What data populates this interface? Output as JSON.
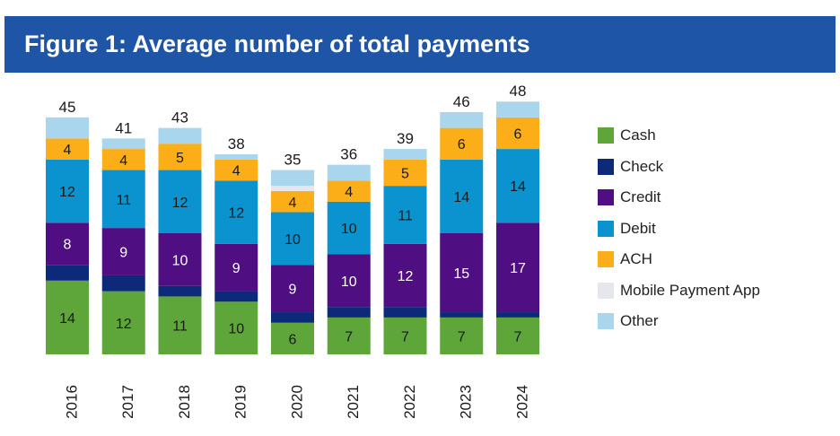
{
  "chart_data": {
    "type": "bar",
    "stacked": true,
    "title": "Figure 1: Average number of total payments",
    "xlabel": "",
    "ylabel": "",
    "ylim": [
      0,
      48
    ],
    "legend_position": "right",
    "categories": [
      "2016",
      "2017",
      "2018",
      "2019",
      "2020",
      "2021",
      "2022",
      "2023",
      "2024"
    ],
    "totals": [
      45,
      41,
      43,
      38,
      35,
      36,
      39,
      46,
      48
    ],
    "series": [
      {
        "name": "Cash",
        "color": "#5ea639",
        "label_color": "#1a1a1a",
        "labeled": true,
        "values": [
          14,
          12,
          11,
          10,
          6,
          7,
          7,
          7,
          7
        ]
      },
      {
        "name": "Check",
        "color": "#0d2a7a",
        "label_color": "#ffffff",
        "labeled": false,
        "values": [
          3,
          3,
          2,
          2,
          2,
          2,
          2,
          1,
          1
        ]
      },
      {
        "name": "Credit",
        "color": "#4f0f82",
        "label_color": "#ffffff",
        "labeled": true,
        "values": [
          8,
          9,
          10,
          9,
          9,
          10,
          12,
          15,
          17
        ]
      },
      {
        "name": "Debit",
        "color": "#0b93cf",
        "label_color": "#1a1a1a",
        "labeled": true,
        "values": [
          12,
          11,
          12,
          12,
          10,
          10,
          11,
          14,
          14
        ]
      },
      {
        "name": "ACH",
        "color": "#fbae17",
        "label_color": "#1a1a1a",
        "labeled": true,
        "values": [
          4,
          4,
          5,
          4,
          4,
          4,
          5,
          6,
          6
        ]
      },
      {
        "name": "Mobile Payment App",
        "color": "#e6e7ec",
        "label_color": "#1a1a1a",
        "labeled": false,
        "values": [
          0,
          0,
          0,
          0,
          1,
          0,
          0,
          0,
          0
        ]
      },
      {
        "name": "Other",
        "color": "#a9d6ec",
        "label_color": "#1a1a1a",
        "labeled": false,
        "values": [
          4,
          2,
          3,
          1,
          3,
          3,
          2,
          3,
          3
        ]
      }
    ]
  }
}
